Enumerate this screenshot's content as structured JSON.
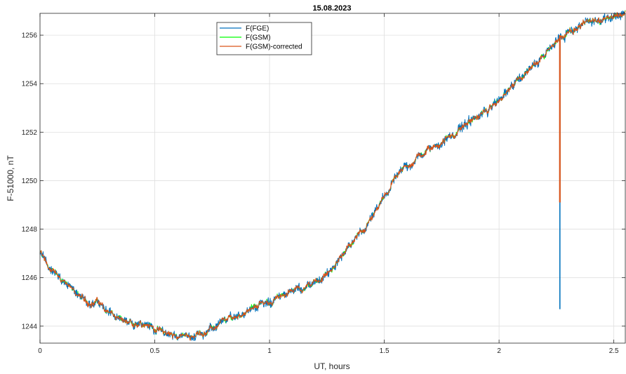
{
  "chart_data": {
    "type": "line",
    "title": "15.08.2023",
    "xlabel": "UT, hours",
    "ylabel": "F-51000, nT",
    "xlim": [
      0,
      2.55
    ],
    "ylim": [
      1243.3,
      1256.9
    ],
    "xticks": [
      0,
      0.5,
      1,
      1.5,
      2,
      2.5
    ],
    "xtick_labels": [
      "0",
      "0.5",
      "1",
      "1.5",
      "2",
      "2.5"
    ],
    "yticks": [
      1244,
      1246,
      1248,
      1250,
      1252,
      1254,
      1256
    ],
    "ytick_labels": [
      "1244",
      "1246",
      "1248",
      "1250",
      "1252",
      "1254",
      "1256"
    ],
    "grid": true,
    "legend_position": "top-left",
    "series": [
      {
        "name": "F(FGE)",
        "color": "#0072BD",
        "noise": 0.14,
        "spike": {
          "x": 2.265,
          "y_min": 1244.7
        }
      },
      {
        "name": "F(GSM)",
        "color": "#00FF00",
        "noise": 0.07
      },
      {
        "name": "F(GSM)-corrected",
        "color": "#D95319",
        "noise": 0.07,
        "spike": {
          "x": 2.265,
          "y_min": 1249.1
        }
      }
    ],
    "trend": {
      "x": [
        0,
        0.05,
        0.1,
        0.15,
        0.2,
        0.25,
        0.3,
        0.35,
        0.4,
        0.45,
        0.5,
        0.55,
        0.6,
        0.65,
        0.7,
        0.75,
        0.8,
        0.85,
        0.9,
        0.95,
        1.0,
        1.05,
        1.1,
        1.15,
        1.2,
        1.25,
        1.3,
        1.35,
        1.4,
        1.45,
        1.5,
        1.55,
        1.6,
        1.65,
        1.7,
        1.75,
        1.8,
        1.85,
        1.9,
        1.95,
        2.0,
        2.05,
        2.1,
        2.15,
        2.2,
        2.25,
        2.3,
        2.35,
        2.4,
        2.45,
        2.5,
        2.55
      ],
      "y": [
        1247.0,
        1246.3,
        1245.9,
        1245.4,
        1245.0,
        1245.0,
        1244.6,
        1244.2,
        1244.1,
        1244.2,
        1243.9,
        1243.7,
        1243.6,
        1243.6,
        1243.7,
        1243.9,
        1244.2,
        1244.4,
        1244.6,
        1244.9,
        1245.0,
        1245.2,
        1245.5,
        1245.6,
        1245.8,
        1246.1,
        1246.7,
        1247.3,
        1247.8,
        1248.5,
        1249.3,
        1250.1,
        1250.6,
        1251.0,
        1251.3,
        1251.6,
        1251.9,
        1252.3,
        1252.6,
        1252.9,
        1253.3,
        1253.8,
        1254.3,
        1254.8,
        1255.3,
        1255.7,
        1256.1,
        1256.4,
        1256.6,
        1256.7,
        1256.8,
        1256.9
      ]
    }
  }
}
